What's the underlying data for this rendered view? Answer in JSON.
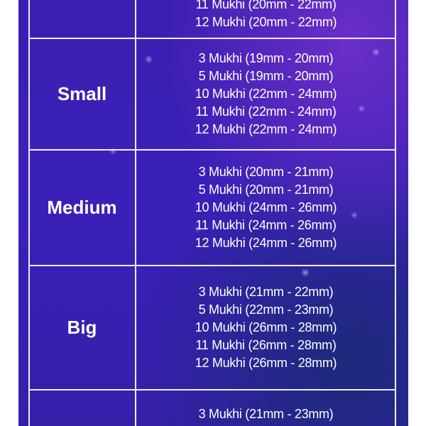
{
  "rows": [
    {
      "label": "",
      "sizes": [
        "11 Mukhi (20mm - 22mm)",
        "12 Mukhi (20mm - 22mm)"
      ]
    },
    {
      "label": "Small",
      "sizes": [
        "3 Mukhi (19mm - 20mm)",
        "5 Mukhi (19mm - 20mm)",
        "10 Mukhi (22mm - 24mm)",
        "11 Mukhi (22mm - 24mm)",
        "12 Mukhi (22mm - 24mm)"
      ]
    },
    {
      "label": "Medium",
      "sizes": [
        "3 Mukhi (20mm - 21mm)",
        "5 Mukhi (20mm - 21mm)",
        "10 Mukhi (24mm - 26mm)",
        "11 Mukhi (24mm - 26mm)",
        "12 Mukhi (24mm - 26mm)"
      ]
    },
    {
      "label": "Big",
      "sizes": [
        "3 Mukhi (21mm - 22mm)",
        "5 Mukhi (22mm - 23mm)",
        "10 Mukhi (26mm - 28mm)",
        "11 Mukhi (26mm - 28mm)",
        "12 Mukhi (26mm - 28mm)"
      ]
    },
    {
      "label": "",
      "sizes": [
        "3 Mukhi (21mm - 23mm)"
      ]
    }
  ]
}
